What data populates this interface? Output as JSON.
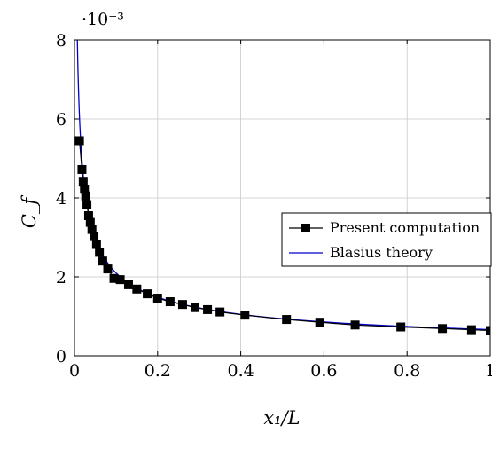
{
  "chart_data": {
    "type": "line",
    "title": "",
    "xlabel": "x₁/L",
    "ylabel": "C_f",
    "y_multiplier": "·10⁻³",
    "xlim": [
      0,
      1
    ],
    "ylim": [
      0,
      8
    ],
    "xticks": [
      0,
      0.2,
      0.4,
      0.6,
      0.8,
      1
    ],
    "xtick_labels": [
      "0",
      "0.2",
      "0.4",
      "0.6",
      "0.8",
      "1"
    ],
    "yticks": [
      0,
      2,
      4,
      6,
      8
    ],
    "ytick_labels": [
      "0",
      "2",
      "4",
      "6",
      "8"
    ],
    "grid": true,
    "legend_position": "center-right",
    "series": [
      {
        "name": "Present computation",
        "color": "#000000",
        "marker": "square",
        "x": [
          0.012,
          0.018,
          0.021,
          0.024,
          0.027,
          0.03,
          0.034,
          0.038,
          0.042,
          0.047,
          0.053,
          0.06,
          0.068,
          0.08,
          0.095,
          0.11,
          0.13,
          0.15,
          0.175,
          0.2,
          0.23,
          0.26,
          0.29,
          0.32,
          0.35,
          0.41,
          0.51,
          0.59,
          0.675,
          0.785,
          0.885,
          0.955,
          1.0
        ],
        "y": [
          5.45,
          4.72,
          4.4,
          4.22,
          4.05,
          3.83,
          3.55,
          3.38,
          3.2,
          3.02,
          2.82,
          2.62,
          2.4,
          2.2,
          1.96,
          1.93,
          1.8,
          1.69,
          1.57,
          1.46,
          1.37,
          1.3,
          1.22,
          1.17,
          1.11,
          1.03,
          0.92,
          0.85,
          0.78,
          0.73,
          0.69,
          0.66,
          0.64
        ]
      },
      {
        "name": "Blasius theory",
        "color": "#0000cc",
        "marker": "none",
        "formula_coef": 0.664,
        "formula_exp": -0.5
      }
    ]
  }
}
